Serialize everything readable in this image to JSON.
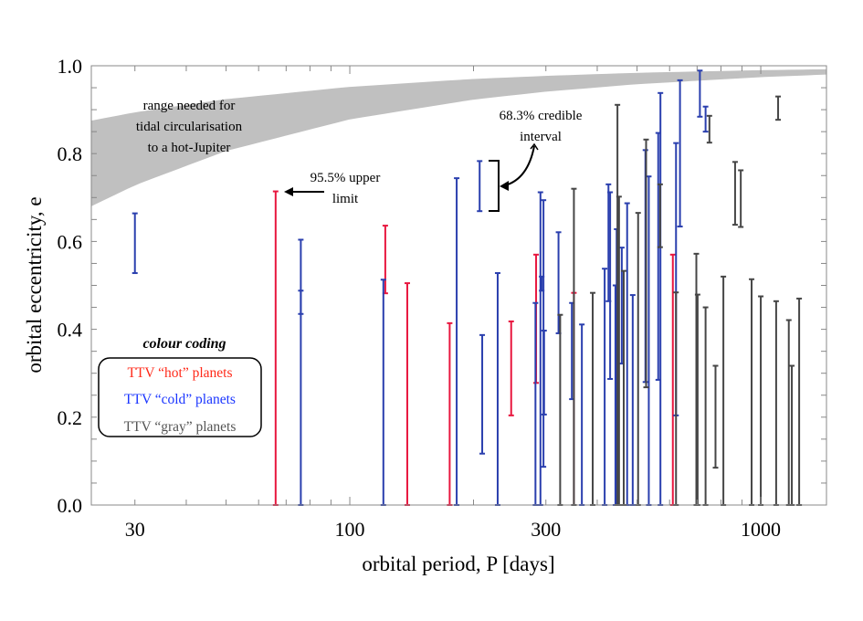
{
  "chart_data": {
    "type": "errorbar",
    "title": "",
    "xlabel": "orbital period, P [days]",
    "ylabel": "orbital eccentricity, e",
    "xscale": "log",
    "xlim": [
      23.5,
      1445
    ],
    "ylim": [
      0,
      1
    ],
    "x_ticks": [
      30,
      100,
      300,
      1000
    ],
    "x_tick_labels": [
      "30",
      "100",
      "300",
      "1000"
    ],
    "y_ticks": [
      0,
      0.2,
      0.4,
      0.6,
      0.8,
      1.0
    ],
    "y_tick_labels": [
      "0.0",
      "0.2",
      "0.4",
      "0.6",
      "0.8",
      "1.0"
    ],
    "grid": false,
    "colors": {
      "hot": "#e8173f",
      "cold": "#2a3fae",
      "gray": "#464646",
      "band": "#c0c0c0"
    },
    "band": {
      "label_lines": [
        "range needed for",
        "tidal circularisation",
        "to a hot-Jupiter"
      ],
      "period": [
        23.5,
        30,
        50,
        100,
        200,
        300,
        500,
        1000,
        1445
      ],
      "e_lower": [
        0.68,
        0.728,
        0.806,
        0.878,
        0.923,
        0.941,
        0.958,
        0.974,
        0.98
      ],
      "e_upper": [
        0.875,
        0.894,
        0.924,
        0.952,
        0.97,
        0.977,
        0.984,
        0.99,
        0.992
      ]
    },
    "series": [
      {
        "name": "TTV “hot” planets",
        "key": "hot",
        "points": [
          [
            66,
            0,
            0.714
          ],
          [
            122,
            0.482,
            0.636
          ],
          [
            138,
            0,
            0.505
          ],
          [
            175,
            0,
            0.414
          ],
          [
            247,
            0.204,
            0.418
          ],
          [
            284,
            0.278,
            0.57
          ],
          [
            351,
            0,
            0.483
          ],
          [
            611,
            0,
            0.57
          ]
        ]
      },
      {
        "name": "TTV “cold” planets",
        "key": "cold",
        "points": [
          [
            30,
            0.528,
            0.664
          ],
          [
            76,
            0,
            0.604
          ],
          [
            76,
            0.435,
            0.488
          ],
          [
            120.7,
            0,
            0.513
          ],
          [
            182,
            0,
            0.744
          ],
          [
            207,
            0.669,
            0.783
          ],
          [
            210,
            0.117,
            0.387
          ],
          [
            229,
            0,
            0.528
          ],
          [
            283,
            0,
            0.46
          ],
          [
            291,
            0,
            0.712
          ],
          [
            293,
            0.488,
            0.52
          ],
          [
            296,
            0.087,
            0.694
          ],
          [
            297,
            0.206,
            0.397
          ],
          [
            322,
            0.391,
            0.621
          ],
          [
            347,
            0.241,
            0.46
          ],
          [
            367,
            0,
            0.411
          ],
          [
            417,
            0,
            0.538
          ],
          [
            426,
            0.464,
            0.73
          ],
          [
            430,
            0.287,
            0.712
          ],
          [
            443,
            0,
            0.5
          ],
          [
            446,
            0,
            0.628
          ],
          [
            459,
            0.322,
            0.586
          ],
          [
            473,
            0,
            0.687
          ],
          [
            488,
            0,
            0.478
          ],
          [
            524,
            0.28,
            0.808
          ],
          [
            534,
            0,
            0.748
          ],
          [
            563,
            0.285,
            0.847
          ],
          [
            570,
            0,
            0.938
          ],
          [
            622,
            0.204,
            0.824
          ],
          [
            636,
            0.634,
            0.967
          ],
          [
            711,
            0.884,
            0.989
          ],
          [
            734,
            0.85,
            0.907
          ]
        ]
      },
      {
        "name": "TTV “gray” planets",
        "key": "gray",
        "points": [
          [
            325,
            0,
            0.433
          ],
          [
            351,
            0,
            0.72
          ],
          [
            390,
            0,
            0.483
          ],
          [
            448,
            0,
            0.911
          ],
          [
            452,
            0,
            0.702
          ],
          [
            464,
            0,
            0.533
          ],
          [
            503,
            0,
            0.665
          ],
          [
            526,
            0.268,
            0.832
          ],
          [
            569,
            0.587,
            0.73
          ],
          [
            622,
            0,
            0.484
          ],
          [
            697,
            0,
            0.572
          ],
          [
            702,
            0,
            0.479
          ],
          [
            734,
            0,
            0.45
          ],
          [
            750,
            0.825,
            0.886
          ],
          [
            776,
            0.085,
            0.317
          ],
          [
            811,
            0,
            0.52
          ],
          [
            866,
            0.638,
            0.781
          ],
          [
            894,
            0.633,
            0.762
          ],
          [
            950,
            0,
            0.514
          ],
          [
            1000,
            0,
            0.475
          ],
          [
            1090,
            0,
            0.464
          ],
          [
            1102,
            0.877,
            0.93
          ],
          [
            1170,
            0,
            0.421
          ],
          [
            1190,
            0,
            0.317
          ],
          [
            1240,
            0,
            0.47
          ]
        ]
      }
    ],
    "annotations": {
      "upper_limit_lines": [
        "95.5% upper",
        "limit"
      ],
      "credible_lines": [
        "68.3% credible",
        "interval"
      ]
    },
    "legend": {
      "title": "colour coding",
      "placement": "lower-left",
      "entries": [
        {
          "label": "TTV “hot” planets",
          "color": "#ff2a1a"
        },
        {
          "label": "TTV “cold” planets",
          "color": "#1a35ff"
        },
        {
          "label": "TTV “gray” planets",
          "color": "#555555"
        }
      ]
    }
  }
}
